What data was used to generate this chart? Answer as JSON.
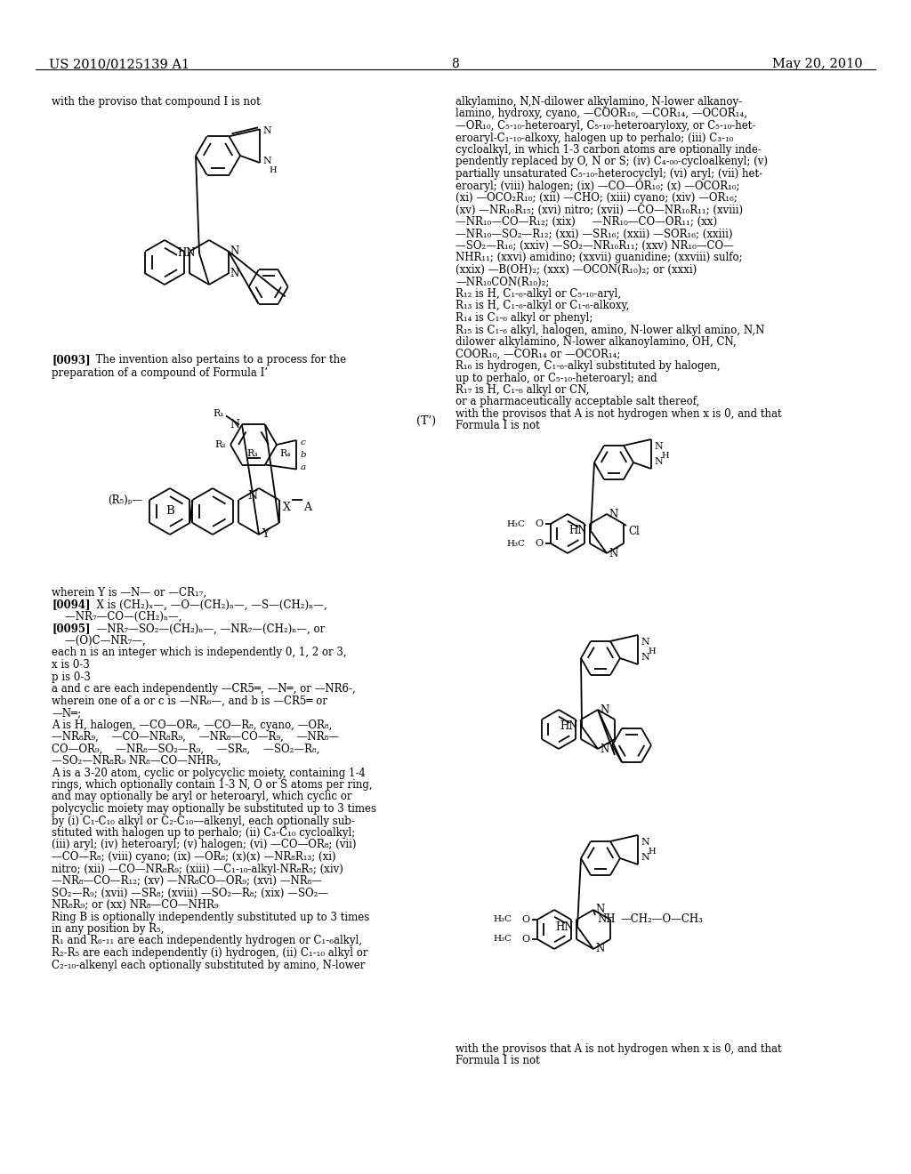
{
  "background": "#ffffff",
  "header_left": "US 2010/0125139 A1",
  "header_center": "8",
  "header_right": "May 20, 2010"
}
